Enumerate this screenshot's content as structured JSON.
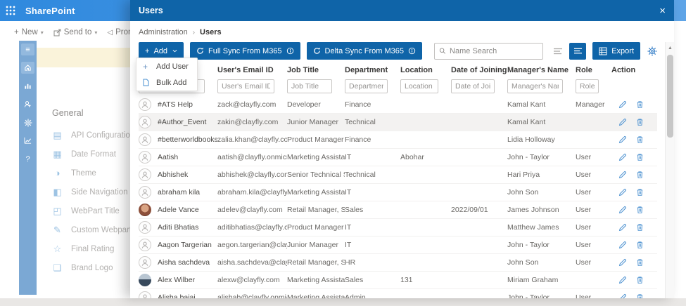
{
  "colors": {
    "sharepoint_bar_blue": "#2f89de",
    "modal_header_blue": "#0f64a8",
    "button_blue": "#0f64a8",
    "rail_blue": "#7ba8d4",
    "banner_beige": "#faf3da",
    "row_highlight": "#f3f2f1",
    "action_icon_blue": "#4a90d0"
  },
  "sharepoint": {
    "app_title": "SharePoint",
    "toolbar": {
      "new_label": "New",
      "send_to_label": "Send to",
      "promote_label": "Promot"
    },
    "settings": {
      "heading": "General",
      "items": [
        {
          "label": "API Configuration",
          "icon": "api-configuration-icon"
        },
        {
          "label": "Date Format",
          "icon": "date-format-icon"
        },
        {
          "label": "Theme",
          "icon": "theme-icon"
        },
        {
          "label": "Side Navigation Panel",
          "icon": "side-navigation-icon"
        },
        {
          "label": "WebPart Title",
          "icon": "webpart-title-icon"
        },
        {
          "label": "Custom Webpart CSS",
          "icon": "custom-webpart-css-icon"
        },
        {
          "label": "Final Rating",
          "icon": "final-rating-icon"
        },
        {
          "label": "Brand Logo",
          "icon": "brand-logo-icon"
        }
      ]
    }
  },
  "modal": {
    "title": "Users",
    "close_label": "×",
    "breadcrumb": {
      "parent": "Administration",
      "separator": "›",
      "current": "Users"
    },
    "toolbar": {
      "add_label": "Add",
      "full_sync_label": "Full Sync From M365",
      "delta_sync_label": "Delta Sync From M365",
      "search_placeholder": "Name Search",
      "export_label": "Export"
    },
    "add_menu": {
      "items": [
        {
          "label": "Add User",
          "icon": "plus-icon"
        },
        {
          "label": "Bulk Add",
          "icon": "file-icon"
        }
      ]
    },
    "table": {
      "columns": [
        "",
        "User's Email ID",
        "Job Title",
        "Department",
        "Location",
        "Date of Joining",
        "Manager's Name",
        "Role",
        "Action"
      ],
      "filter_placeholders": [
        "",
        "User's Email ID",
        "Job Title",
        "Department",
        "Location",
        "Date of Joining",
        "Manager's Name",
        "Role"
      ],
      "rows": [
        {
          "name": "#ATS Help",
          "email": "zack@clayfly.com",
          "job_title": "Developer",
          "department": "Finance",
          "location": "",
          "date_of_joining": "",
          "manager": "Kamal Kant",
          "role": "Manager",
          "avatar": "generic",
          "highlighted": false
        },
        {
          "name": "#Author_Event",
          "email": "zakin@clayfly.com",
          "job_title": "Junior Manager",
          "department": "Technical",
          "location": "",
          "date_of_joining": "",
          "manager": "Kamal Kant",
          "role": "",
          "avatar": "generic",
          "highlighted": true
        },
        {
          "name": "#betterworldbooks",
          "email": "zalia.khan@clayfly.com",
          "job_title": "Product Manager",
          "department": "Finance",
          "location": "",
          "date_of_joining": "",
          "manager": "Lidia Holloway",
          "role": "",
          "avatar": "generic",
          "highlighted": false
        },
        {
          "name": "Aatish",
          "email": "aatish@clayfly.onmicrosof...",
          "job_title": "Marketing Assistant, ...",
          "department": "IT",
          "location": "Abohar",
          "date_of_joining": "",
          "manager": "John - Taylor",
          "role": "User",
          "avatar": "generic",
          "highlighted": false
        },
        {
          "name": "Abhishek",
          "email": "abhishek@clayfly.com",
          "job_title": "Senior Technical Spe...",
          "department": "Technical",
          "location": "",
          "date_of_joining": "",
          "manager": "Hari Priya",
          "role": "User",
          "avatar": "generic",
          "highlighted": false
        },
        {
          "name": "abraham kila",
          "email": "abraham.kila@clayfly.onmi...",
          "job_title": "Marketing Assistant, ...",
          "department": "IT",
          "location": "",
          "date_of_joining": "",
          "manager": "John Son",
          "role": "User",
          "avatar": "generic",
          "highlighted": false
        },
        {
          "name": "Adele Vance",
          "email": "adelev@clayfly.com",
          "job_title": "Retail Manager, Senior",
          "department": "Sales",
          "location": "",
          "date_of_joining": "2022/09/01",
          "manager": "James Johnson",
          "role": "User",
          "avatar": "photo-woman",
          "highlighted": false
        },
        {
          "name": "Aditi Bhatias",
          "email": "aditibhatias@clayfly.com",
          "job_title": "Product Manager",
          "department": "IT",
          "location": "",
          "date_of_joining": "",
          "manager": "Matthew James",
          "role": "User",
          "avatar": "generic",
          "highlighted": false
        },
        {
          "name": "Aagon Targerian",
          "email": "aegon.targerian@clayfly.o...",
          "job_title": "Junior Manager",
          "department": "IT",
          "location": "",
          "date_of_joining": "",
          "manager": "John - Taylor",
          "role": "User",
          "avatar": "generic",
          "highlighted": false
        },
        {
          "name": "Aisha sachdeva",
          "email": "aisha.sachdeva@clayfly.on...",
          "job_title": "Retail Manager, Senior",
          "department": "HR",
          "location": "",
          "date_of_joining": "",
          "manager": "John Son",
          "role": "User",
          "avatar": "generic",
          "highlighted": false
        },
        {
          "name": "Alex Wilber",
          "email": "alexw@clayfly.com",
          "job_title": "Marketing Assistant, ...",
          "department": "Sales",
          "location": "131",
          "date_of_joining": "",
          "manager": "Miriam Graham",
          "role": "",
          "avatar": "photo-man",
          "highlighted": false
        },
        {
          "name": "Alisha bajaj",
          "email": "alishab@clayfly.onmicroso...",
          "job_title": "Marketing Assistant, ...",
          "department": "Admin",
          "location": "",
          "date_of_joining": "",
          "manager": "John - Taylor",
          "role": "User",
          "avatar": "generic",
          "highlighted": false
        }
      ]
    }
  }
}
